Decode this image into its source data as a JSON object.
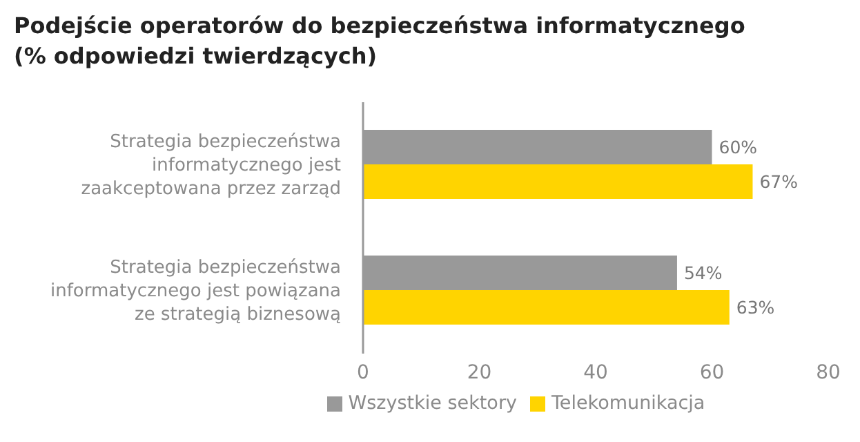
{
  "chart_data": {
    "type": "bar",
    "orientation": "horizontal",
    "title": "Podejście operatorów do bezpieczeństwa informatycznego\n(% odpowiedzi twierdzących)",
    "categories": [
      "Strategia bezpieczeństwa informatycznego jest zaakceptowana przez zarząd",
      "Strategia bezpieczeństwa informatycznego jest powiązana ze strategią biznesową"
    ],
    "series": [
      {
        "name": "Wszystkie sektory",
        "color": "#999999",
        "values": [
          60,
          54
        ],
        "value_labels": [
          "60%",
          "54%"
        ]
      },
      {
        "name": "Telekomunikacja",
        "color": "#ffd400",
        "values": [
          67,
          63
        ],
        "value_labels": [
          "67%",
          "63%"
        ]
      }
    ],
    "xlim": [
      0,
      80
    ],
    "xticks": [
      0,
      20,
      40,
      60,
      80
    ],
    "grid": false,
    "legend": "bottom"
  }
}
